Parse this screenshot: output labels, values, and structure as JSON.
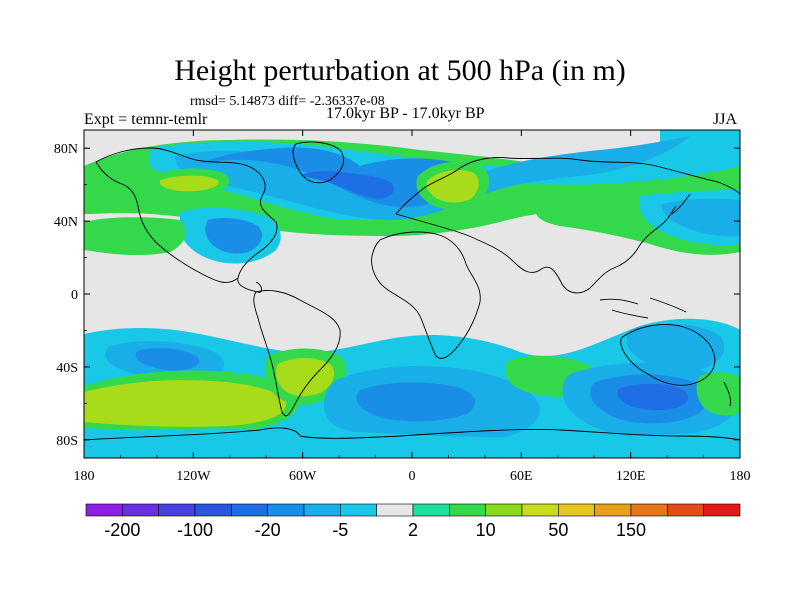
{
  "header": {
    "title": "Height perturbation at 500 hPa (in m)",
    "stats": "rmsd= 5.14873 diff= -2.36337e-08",
    "left_label": "Expt = temnr-temlr",
    "center_label": "17.0kyr BP - 17.0kyr BP",
    "right_label": "JJA"
  },
  "map": {
    "lat_labels": [
      "80N",
      "40N",
      "0",
      "40S",
      "80S"
    ],
    "lon_labels": [
      "180",
      "120W",
      "60W",
      "0",
      "60E",
      "120E",
      "180"
    ],
    "lat_values": [
      80,
      40,
      0,
      -40,
      -80
    ],
    "lon_values": [
      -180,
      -120,
      -60,
      0,
      60,
      120,
      180
    ],
    "lat_range": [
      -90,
      90
    ],
    "lon_range": [
      -180,
      180
    ]
  },
  "colorbar": {
    "labels": [
      "-200",
      "-100",
      "-20",
      "-5",
      "2",
      "10",
      "50",
      "150"
    ],
    "colors": [
      "#8c1fe6",
      "#6a2ee3",
      "#4a3fe0",
      "#2a55e0",
      "#1e6fe6",
      "#1a8ee6",
      "#1aaee8",
      "#19c8e6",
      "#e6e6e6",
      "#1ae0a0",
      "#33d94a",
      "#8ad91a",
      "#c8dc1a",
      "#e6c61a",
      "#e6a01a",
      "#e6761a",
      "#e64a1a",
      "#e61a1a"
    ]
  },
  "palette": {
    "blue_dark": "#1e6fe6",
    "blue_mid": "#1a8ee6",
    "cyan": "#1aaee8",
    "light_cyan": "#19c8e6",
    "neutral": "#e6e6e6",
    "teal_green": "#1ae0a0",
    "green": "#33d94a",
    "yellow_green": "#a8dc1a"
  }
}
